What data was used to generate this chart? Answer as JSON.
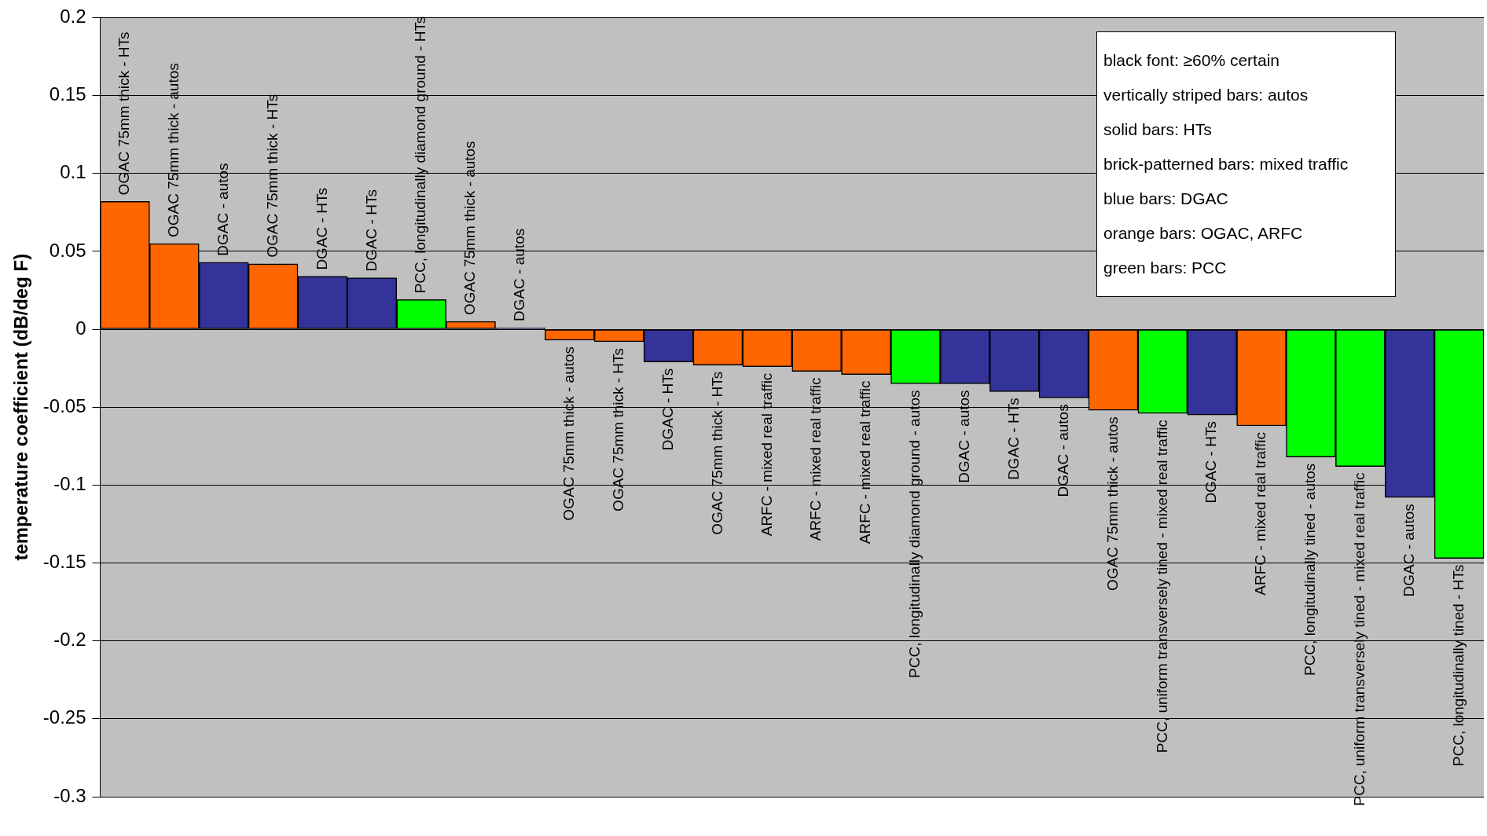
{
  "chart_data": {
    "type": "bar",
    "ylabel": "temperature coefficient (dB/deg F)",
    "categories": [
      "OGAC 75mm thick - HTs",
      "OGAC 75mm thick - autos",
      "DGAC - autos",
      "OGAC 75mm thick - HTs",
      "DGAC - HTs",
      "DGAC - HTs",
      "PCC, longitudinally diamond ground - HTs",
      "OGAC 75mm thick - autos",
      "DGAC - autos",
      "OGAC 75mm thick - autos",
      "OGAC 75mm thick - HTs",
      "DGAC - HTs",
      "OGAC 75mm thick - HTs",
      "ARFC - mixed real traffic",
      "ARFC - mixed real traffic",
      "ARFC - mixed real traffic",
      "PCC, longitudinally diamond ground - autos",
      "DGAC - autos",
      "DGAC - HTs",
      "DGAC - autos",
      "OGAC 75mm thick - autos",
      "PCC, uniform transversely tined - mixed real traffic",
      "DGAC - HTs",
      "ARFC - mixed real traffic",
      "PCC, longitudinally tined - autos",
      "PCC, uniform transversely tined - mixed real traffic",
      "DGAC - autos",
      "PCC, longitudinally tined - HTs"
    ],
    "values": [
      0.082,
      0.055,
      0.043,
      0.042,
      0.034,
      0.033,
      0.019,
      0.005,
      0.001,
      -0.007,
      -0.008,
      -0.021,
      -0.023,
      -0.024,
      -0.027,
      -0.029,
      -0.035,
      -0.035,
      -0.04,
      -0.044,
      -0.052,
      -0.054,
      -0.055,
      -0.062,
      -0.082,
      -0.088,
      -0.108,
      -0.147
    ],
    "colors": [
      "#ff6600",
      "#ff6600",
      "#333399",
      "#ff6600",
      "#333399",
      "#333399",
      "#00ff00",
      "#ff6600",
      "#333399",
      "#ff6600",
      "#ff6600",
      "#333399",
      "#ff6600",
      "#ff6600",
      "#ff6600",
      "#ff6600",
      "#00ff00",
      "#333399",
      "#333399",
      "#333399",
      "#ff6600",
      "#00ff00",
      "#333399",
      "#ff6600",
      "#00ff00",
      "#00ff00",
      "#333399",
      "#00ff00"
    ],
    "ylim": [
      -0.3,
      0.2
    ],
    "yticks": [
      0.2,
      0.15,
      0.1,
      0.05,
      0,
      -0.05,
      -0.1,
      -0.15,
      -0.2,
      -0.25,
      -0.3
    ],
    "grid": "y",
    "legend": false,
    "tick_labels": "y",
    "annotations": [
      "black font: ≥60% certain",
      "vertically striped bars: autos",
      "solid bars: HTs",
      "brick-patterned bars: mixed traffic",
      "blue bars: DGAC",
      "orange bars: OGAC, ARFC",
      "green bars: PCC"
    ]
  }
}
